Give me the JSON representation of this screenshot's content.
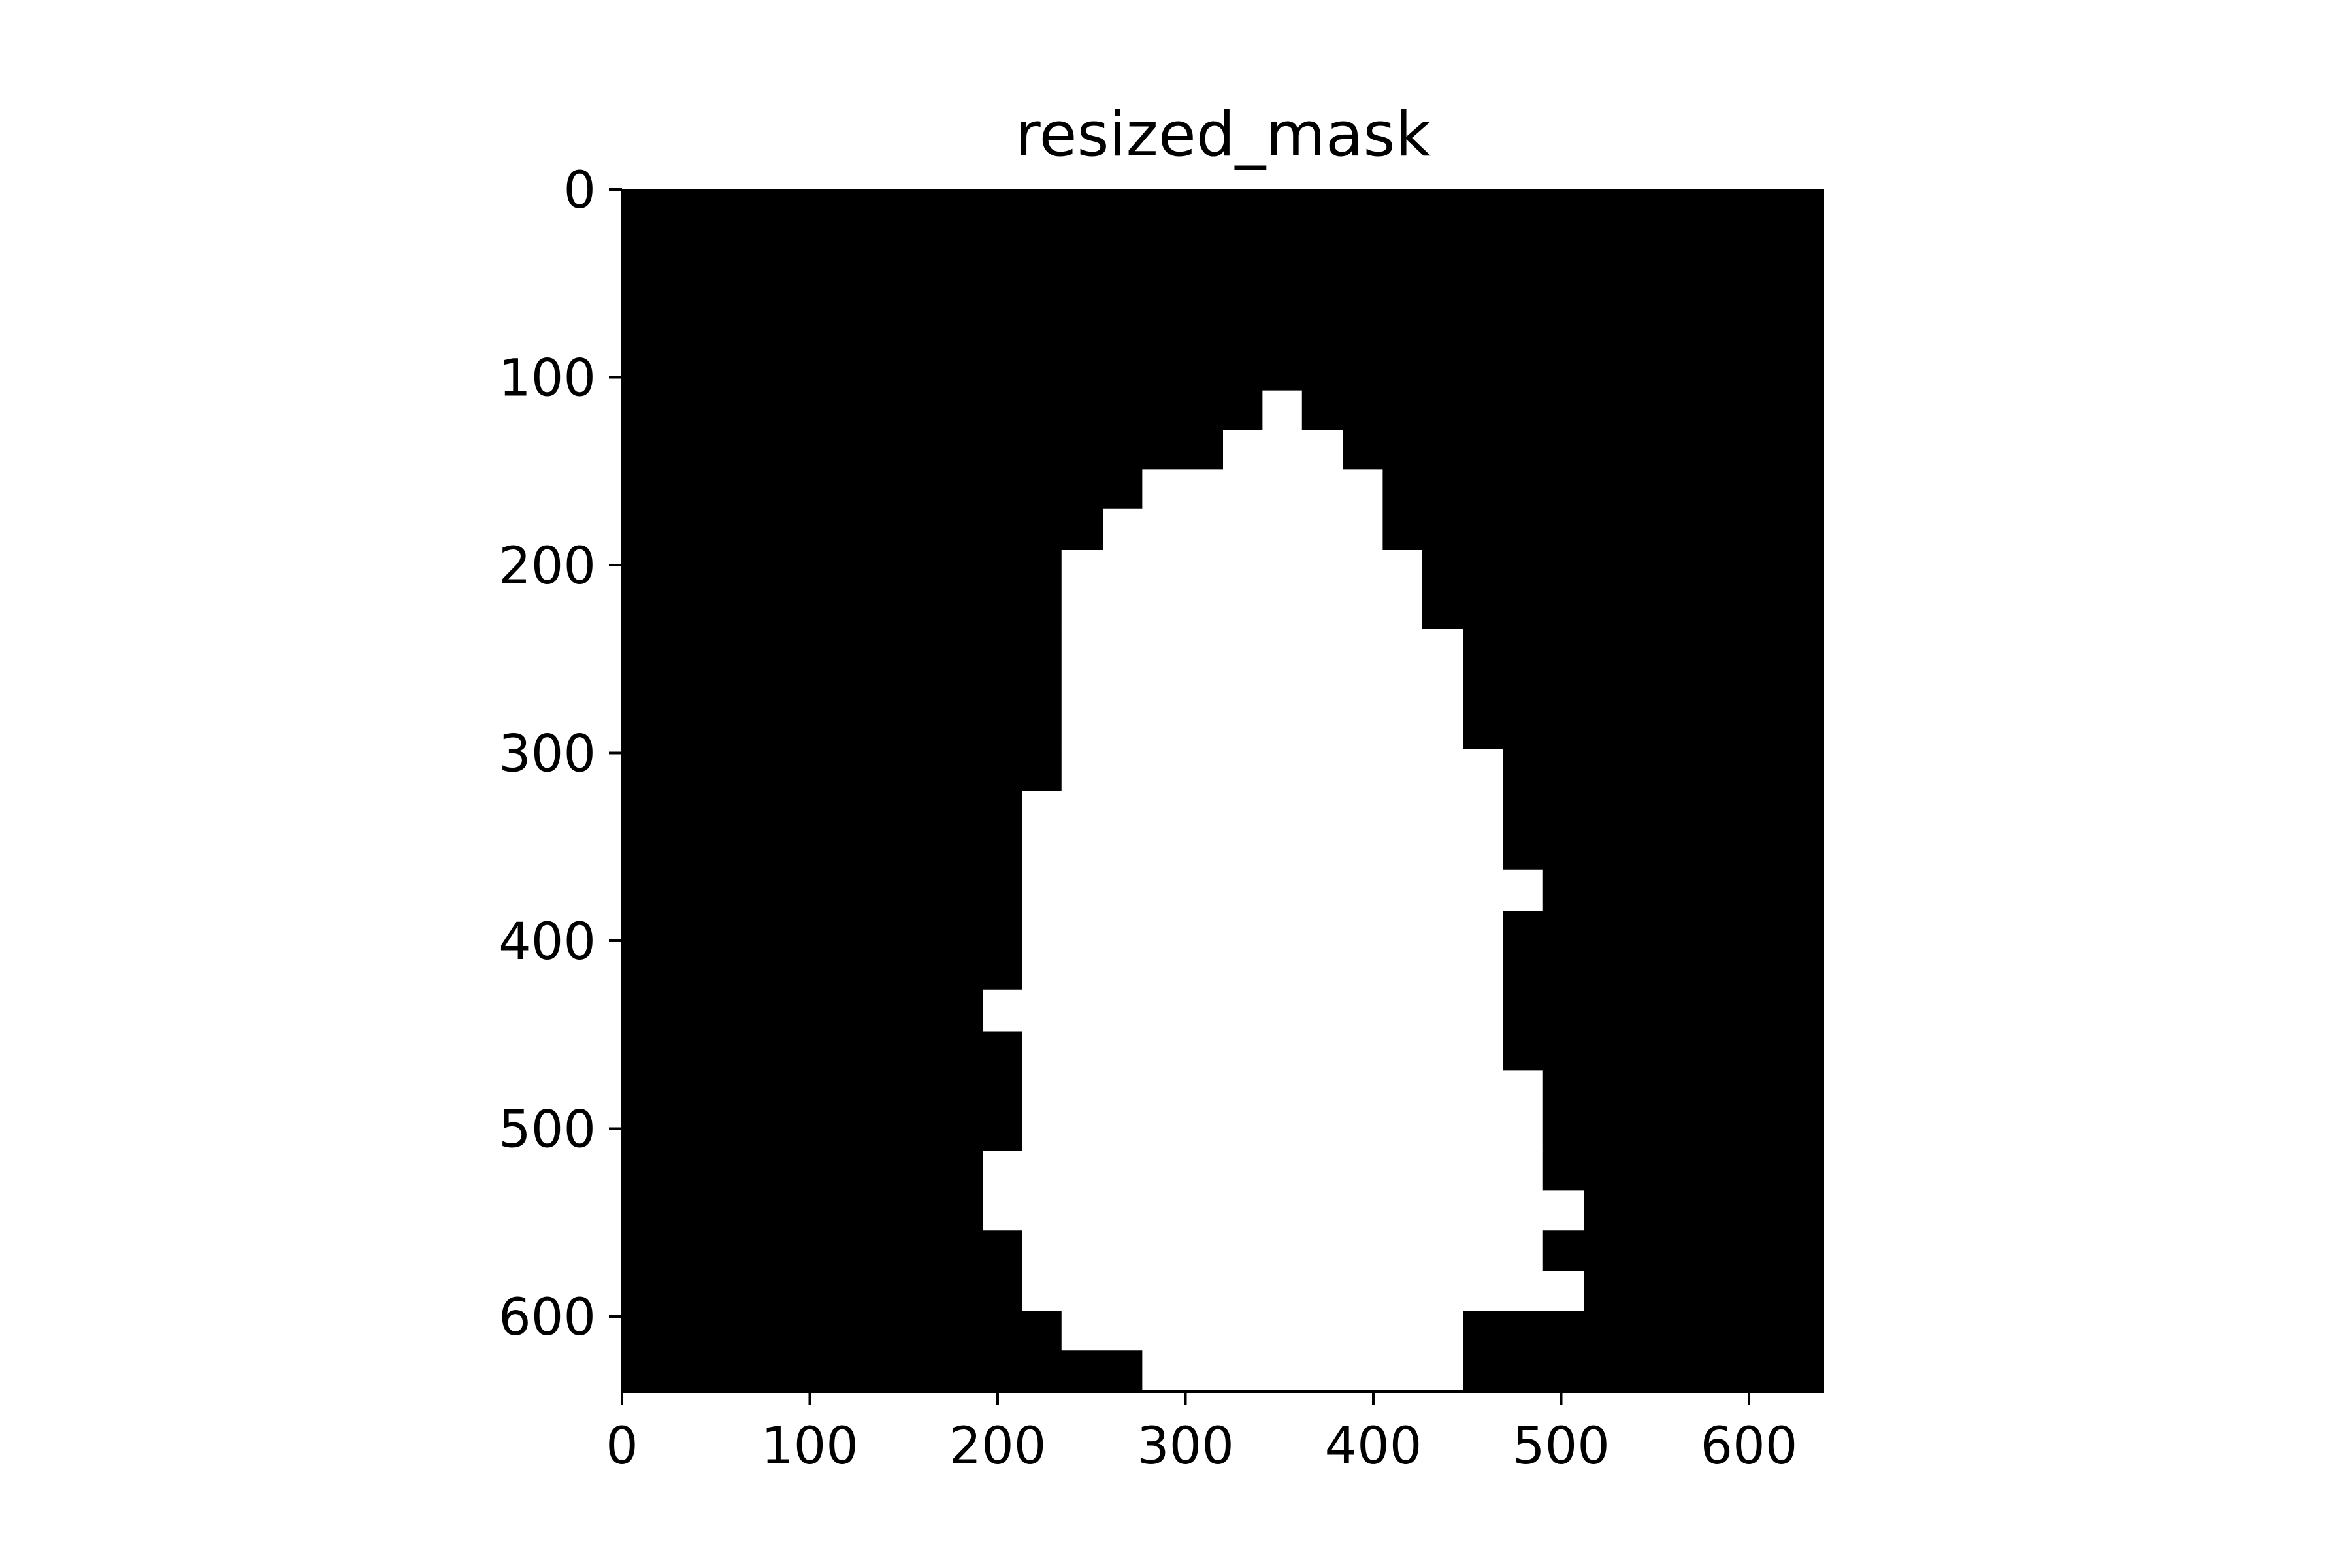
{
  "chart_data": {
    "type": "heatmap",
    "title": "resized_mask",
    "xlabel": "",
    "ylabel": "",
    "xlim": [
      0,
      640
    ],
    "ylim": [
      640,
      0
    ],
    "grid": false,
    "legend": "none",
    "colormap": "gray",
    "x_ticks": [
      0,
      100,
      200,
      300,
      400,
      500,
      600
    ],
    "y_ticks": [
      0,
      100,
      200,
      300,
      400,
      500,
      600
    ],
    "x_tick_labels": [
      "0",
      "100",
      "200",
      "300",
      "400",
      "500",
      "600"
    ],
    "y_tick_labels": [
      "0",
      "100",
      "200",
      "300",
      "400",
      "500",
      "600"
    ],
    "mask_colors": {
      "background": "#000000",
      "foreground": "#ffffff"
    },
    "mask_rows": [
      {
        "y": [
          107,
          128
        ],
        "x": [
          341,
          362
        ]
      },
      {
        "y": [
          128,
          149
        ],
        "x": [
          320,
          384
        ]
      },
      {
        "y": [
          149,
          170
        ],
        "x": [
          277,
          405
        ]
      },
      {
        "y": [
          170,
          192
        ],
        "x": [
          256,
          405
        ]
      },
      {
        "y": [
          192,
          234
        ],
        "x": [
          234,
          426
        ]
      },
      {
        "y": [
          234,
          298
        ],
        "x": [
          234,
          448
        ]
      },
      {
        "y": [
          298,
          320
        ],
        "x": [
          234,
          469
        ]
      },
      {
        "y": [
          320,
          362
        ],
        "x": [
          213,
          469
        ]
      },
      {
        "y": [
          362,
          384
        ],
        "x": [
          213,
          490
        ]
      },
      {
        "y": [
          384,
          426
        ],
        "x": [
          213,
          469
        ]
      },
      {
        "y": [
          426,
          448
        ],
        "x": [
          192,
          469
        ]
      },
      {
        "y": [
          448,
          469
        ],
        "x": [
          213,
          469
        ]
      },
      {
        "y": [
          469,
          512
        ],
        "x": [
          213,
          490
        ]
      },
      {
        "y": [
          512,
          533
        ],
        "x": [
          192,
          490
        ]
      },
      {
        "y": [
          533,
          554
        ],
        "x": [
          192,
          512
        ]
      },
      {
        "y": [
          554,
          576
        ],
        "x": [
          213,
          490
        ]
      },
      {
        "y": [
          576,
          597
        ],
        "x": [
          213,
          512
        ]
      },
      {
        "y": [
          597,
          618
        ],
        "x": [
          234,
          448
        ]
      },
      {
        "y": [
          618,
          640
        ],
        "x": [
          277,
          448
        ]
      }
    ]
  }
}
